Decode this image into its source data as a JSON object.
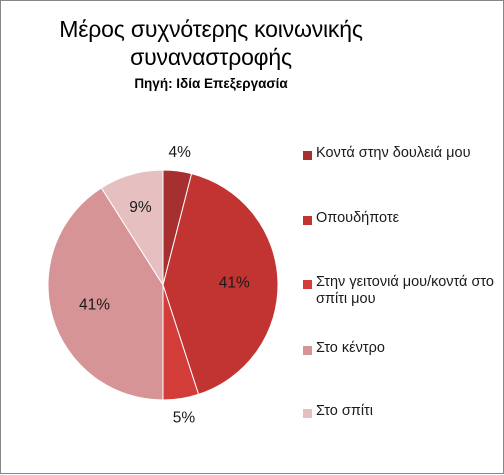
{
  "chart_data": {
    "type": "pie",
    "title": "Μέρος συχνότερης κοινωνικής συναναστροφής",
    "subtitle": "Πηγή: Ιδία Επεξεργασία",
    "slices": [
      {
        "label": "Κοντά στην δουλειά μου",
        "value": 4,
        "value_label": "4%",
        "color": "#a6302f"
      },
      {
        "label": "Οπουδήποτε",
        "value": 41,
        "value_label": "41%",
        "color": "#c23431"
      },
      {
        "label": "Στην γειτονιά μου/κοντά στο σπίτι μου",
        "value": 5,
        "value_label": "5%",
        "color": "#d23c39"
      },
      {
        "label": "Στο κέντρο",
        "value": 41,
        "value_label": "41%",
        "color": "#d69496"
      },
      {
        "label": "Στο σπίτι",
        "value": 9,
        "value_label": "9%",
        "color": "#e6c0c0"
      }
    ],
    "legend_position": "right"
  }
}
